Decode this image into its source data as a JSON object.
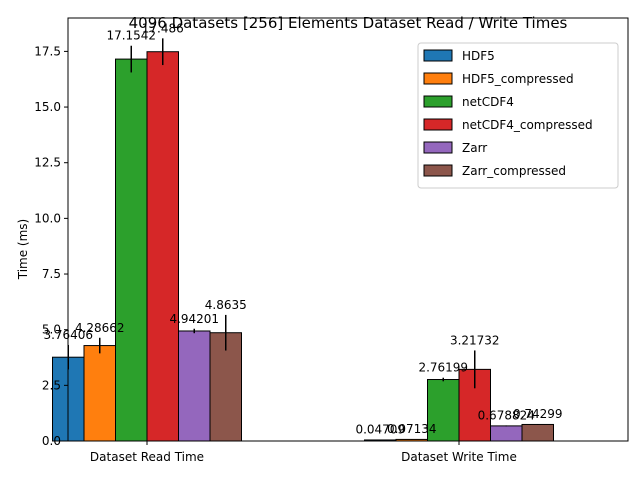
{
  "chart_data": {
    "type": "bar",
    "title": "4096 Datasets [256] Elements Dataset Read / Write Times",
    "xlabel": "",
    "ylabel": "Time (ms)",
    "ylim": [
      0,
      19
    ],
    "yticks": [
      "0.0",
      "2.5",
      "5.0",
      "7.5",
      "10.0",
      "12.5",
      "15.0",
      "17.5"
    ],
    "categories": [
      "Dataset Read Time",
      "Dataset Write Time"
    ],
    "legend_position": "upper right",
    "grid": false,
    "series": [
      {
        "name": "HDF5",
        "color": "#1f77b4",
        "values": [
          3.76406,
          0.04709
        ],
        "errors": [
          0.55,
          0.01
        ],
        "labels": [
          "3.76406",
          "0.04709"
        ]
      },
      {
        "name": "HDF5_compressed",
        "color": "#ff7f0e",
        "values": [
          4.28662,
          0.07134
        ],
        "errors": [
          0.35,
          0.01
        ],
        "labels": [
          "4.28662",
          "0.07134"
        ]
      },
      {
        "name": "netCDF4",
        "color": "#2ca02c",
        "values": [
          17.1542,
          2.76199
        ],
        "errors": [
          0.6,
          0.08
        ],
        "labels": [
          "17.1542",
          "2.76199"
        ]
      },
      {
        "name": "netCDF4_compressed",
        "color": "#d62728",
        "values": [
          17.486,
          3.21732
        ],
        "errors": [
          0.6,
          0.85
        ],
        "labels": [
          "17.486",
          "3.21732"
        ]
      },
      {
        "name": "Zarr",
        "color": "#9467bd",
        "values": [
          4.94201,
          0.678824
        ],
        "errors": [
          0.1,
          0.02
        ],
        "labels": [
          "4.94201",
          "0.678824"
        ]
      },
      {
        "name": "Zarr_compressed",
        "color": "#8c564b",
        "values": [
          4.8635,
          0.74299
        ],
        "errors": [
          0.8,
          0.02
        ],
        "labels": [
          "4.8635",
          "0.74299"
        ]
      }
    ]
  }
}
